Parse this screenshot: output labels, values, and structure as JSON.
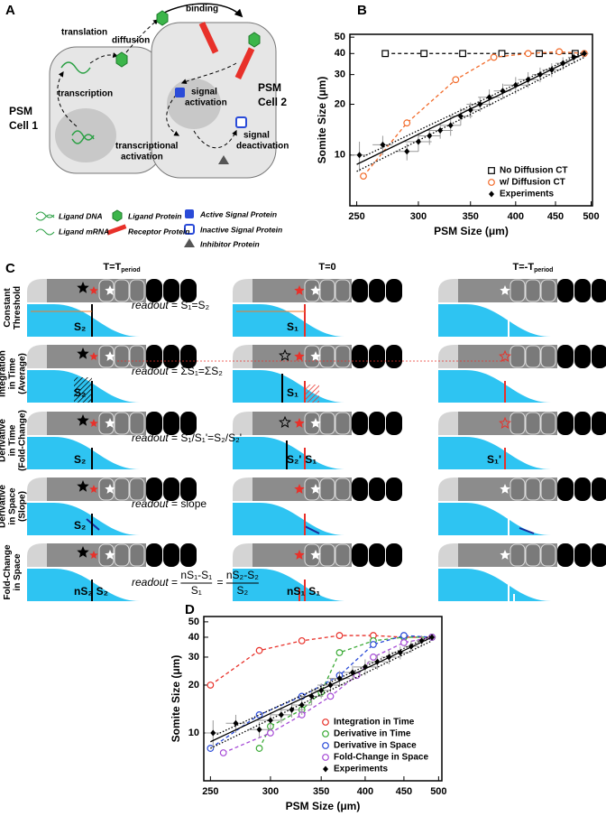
{
  "panel_labels": [
    "A",
    "B",
    "C",
    "D"
  ],
  "panel_a": {
    "labels": {
      "translation": "translation",
      "diffusion": "diffusion",
      "binding": "binding",
      "transcription": "transcription",
      "cell1": [
        "PSM",
        "Cell 1"
      ],
      "signal_activation": [
        "signal",
        "activation"
      ],
      "cell2": [
        "PSM",
        "Cell 2"
      ],
      "transcriptional_activation": [
        "transcriptional",
        "activation"
      ],
      "signal_deactivation": [
        "signal",
        "deactivation"
      ]
    },
    "legend": [
      "Ligand DNA",
      "Ligand mRNA",
      "Ligand Protein",
      "Receptor Protein",
      "Active Signal Protein",
      "Inactive Signal Protein",
      "Inhibitor Protein"
    ]
  },
  "chart_data": [
    {
      "type": "scatter",
      "xlabel": "PSM Size (μm)",
      "ylabel": "Somite Size (μm)",
      "log_x": true,
      "log_y": true,
      "xlim": [
        245,
        502
      ],
      "ylim": [
        5,
        52
      ],
      "xticks": [
        250,
        300,
        350,
        400,
        450,
        500
      ],
      "yticks": [
        10,
        20,
        30,
        40,
        50
      ],
      "legend": "lower right",
      "series": [
        {
          "name": "No Diffusion CT",
          "color": "#000000",
          "marker": "square",
          "line": "dashed",
          "x": [
            272,
            305,
            342,
            384,
            429,
            477
          ],
          "values": [
            40,
            40,
            40,
            40,
            40,
            40
          ]
        },
        {
          "name": "w/ Diffusion CT",
          "color": "#f26b2a",
          "marker": "circle",
          "line": "dashed",
          "x": [
            255,
            290,
            335,
            375,
            415,
            455,
            490
          ],
          "values": [
            7.5,
            15.5,
            28,
            38,
            40,
            41,
            40
          ]
        },
        {
          "name": "Experiments",
          "color": "#000000",
          "marker": "diamond",
          "x": [
            252,
            270,
            290,
            300,
            310,
            320,
            330,
            340,
            350,
            360,
            370,
            385,
            400,
            415,
            430,
            445,
            460,
            475,
            490
          ],
          "values": [
            10,
            11.5,
            10.5,
            12,
            13,
            14,
            15,
            17,
            18.5,
            20,
            22,
            24,
            26,
            28,
            30,
            32,
            35,
            38,
            40
          ],
          "xerr": [
            6,
            8,
            10,
            12,
            10,
            12,
            10,
            12,
            10,
            14,
            12,
            10,
            14,
            12,
            10,
            12,
            10,
            8,
            6
          ],
          "yerr": [
            2,
            1.5,
            1.2,
            1.5,
            1.5,
            1.5,
            2,
            2,
            2,
            2,
            2.5,
            2.5,
            3,
            3,
            3,
            3,
            3,
            3,
            2
          ]
        },
        {
          "color": "#000000",
          "line": "solid",
          "x": [
            250,
            490
          ],
          "values": [
            8.8,
            40
          ]
        },
        {
          "color": "#000000",
          "line": "dotted",
          "x": [
            250,
            490
          ],
          "values": [
            8,
            38
          ]
        },
        {
          "color": "#000000",
          "line": "dotted",
          "x": [
            255,
            490
          ],
          "values": [
            9.8,
            41
          ]
        }
      ]
    },
    {
      "type": "scatter",
      "xlabel": "PSM Size (μm)",
      "ylabel": "Somite Size (μm)",
      "log_x": true,
      "log_y": true,
      "xlim": [
        245,
        505
      ],
      "ylim": [
        5,
        54
      ],
      "xticks": [
        250,
        300,
        350,
        400,
        450,
        500
      ],
      "yticks": [
        10,
        20,
        30,
        40,
        50
      ],
      "legend": "lower right",
      "series": [
        {
          "name": "Integration in Time",
          "color": "#e8312a",
          "marker": "circle",
          "line": "dashed",
          "x": [
            250,
            290,
            330,
            370,
            410,
            450,
            490
          ],
          "values": [
            20,
            33,
            38,
            41,
            41,
            40,
            40
          ]
        },
        {
          "name": "Derivative in Time",
          "color": "#3aaa35",
          "marker": "circle",
          "line": "dashed",
          "x": [
            290,
            300,
            330,
            350,
            370,
            410,
            450,
            490
          ],
          "values": [
            8,
            11,
            14,
            18,
            32,
            38,
            40,
            40
          ]
        },
        {
          "name": "Derivative in Space",
          "color": "#2a4bd8",
          "marker": "circle",
          "line": "dashed",
          "x": [
            250,
            290,
            330,
            370,
            410,
            450,
            490
          ],
          "values": [
            8,
            13,
            17,
            23,
            36,
            41,
            40
          ]
        },
        {
          "name": "Fold-Change in Space",
          "color": "#a64bd6",
          "marker": "circle",
          "line": "dashed",
          "x": [
            260,
            300,
            330,
            360,
            390,
            410,
            450,
            490
          ],
          "values": [
            7.5,
            10,
            13,
            17,
            23,
            30,
            37,
            40
          ]
        },
        {
          "name": "Experiments",
          "color": "#000000",
          "marker": "diamond",
          "x": [
            252,
            270,
            290,
            300,
            310,
            320,
            330,
            340,
            350,
            360,
            370,
            385,
            400,
            415,
            430,
            445,
            460,
            475,
            490
          ],
          "values": [
            10,
            11.5,
            10.5,
            12,
            13,
            14,
            15,
            17,
            18.5,
            20,
            22,
            24,
            26,
            28,
            30,
            32,
            35,
            38,
            40
          ],
          "xerr": [
            6,
            8,
            10,
            12,
            10,
            12,
            10,
            12,
            10,
            14,
            12,
            10,
            14,
            12,
            10,
            12,
            10,
            8,
            6
          ],
          "yerr": [
            2,
            1.5,
            1.2,
            1.5,
            1.5,
            1.5,
            2,
            2,
            2,
            2,
            2.5,
            2.5,
            3,
            3,
            3,
            3,
            3,
            3,
            2
          ]
        },
        {
          "color": "#000000",
          "line": "solid",
          "x": [
            250,
            490
          ],
          "values": [
            8.8,
            40
          ]
        },
        {
          "color": "#000000",
          "line": "dotted",
          "x": [
            250,
            490
          ],
          "values": [
            8,
            38
          ]
        },
        {
          "color": "#000000",
          "line": "dotted",
          "x": [
            255,
            490
          ],
          "values": [
            9.8,
            41
          ]
        }
      ]
    }
  ],
  "panel_c": {
    "columns": [
      {
        "main": "T=T",
        "sub": "period"
      },
      {
        "main": "T=0"
      },
      {
        "main": "T=-T",
        "sub": "period"
      }
    ],
    "rows": [
      {
        "label": [
          "Constant",
          "Threshold"
        ],
        "color": "#f07a2a",
        "cells": [
          [
            {
              "text": "S₂"
            }
          ],
          [
            {
              "text": "S₁"
            }
          ],
          []
        ],
        "readout": [
          {
            "text": "readout",
            "italic": true
          },
          {
            "text": " = "
          },
          {
            "text": "S₁",
            "color": "#e8312a"
          },
          {
            "text": "=S₂"
          }
        ]
      },
      {
        "label": [
          "Integration",
          "in Time",
          "(Average)"
        ],
        "color": "#e8312a",
        "cells": [
          [
            {
              "text": "S₂"
            }
          ],
          [
            {
              "text": "S₁"
            }
          ],
          []
        ],
        "readout": [
          {
            "text": "readout",
            "italic": true
          },
          {
            "text": " = "
          },
          {
            "text": "ΣS₁",
            "color": "#e8312a"
          },
          {
            "text": "=ΣS₂"
          }
        ]
      },
      {
        "label": [
          "Derivative",
          "in Time",
          "(Fold-Change)"
        ],
        "color": "#2fa04a",
        "cells": [
          [
            {
              "text": "S₂"
            }
          ],
          [
            {
              "text": "S₂'"
            },
            {
              "text": "S₁",
              "color": "#e8312a"
            }
          ],
          [
            {
              "text": "S₁'",
              "color": "#e8312a"
            }
          ]
        ],
        "readout": [
          {
            "text": "readout",
            "italic": true
          },
          {
            "text": " = "
          },
          {
            "text": "S₁/S₁'",
            "color": "#e8312a"
          },
          {
            "text": "=S₂/S₂'"
          }
        ]
      },
      {
        "label": [
          "Derivative",
          "in Space",
          "(Slope)"
        ],
        "color": "#2a4bd8",
        "cells": [
          [
            {
              "text": "S₂"
            }
          ],
          [],
          []
        ],
        "readout": [
          {
            "text": "readout",
            "italic": true
          },
          {
            "text": " = slope"
          }
        ]
      },
      {
        "label": [
          "Fold-Change",
          "in Space"
        ],
        "color": "#a64bd6",
        "cells": [
          [
            {
              "text": "nS₂"
            },
            {
              "text": "S₂"
            }
          ],
          [
            {
              "text": "nS₁",
              "color": "#e8312a"
            },
            {
              "text": "S₁",
              "color": "#e8312a"
            }
          ],
          []
        ],
        "readout": [
          {
            "text": "readout",
            "italic": true
          },
          {
            "text": " = "
          },
          {
            "num": "nS₁-S₁",
            "den": "S₁",
            "color": "#e8312a"
          },
          {
            "text": " = "
          },
          {
            "num": "nS₂-S₂",
            "den": "S₂"
          }
        ]
      }
    ]
  }
}
